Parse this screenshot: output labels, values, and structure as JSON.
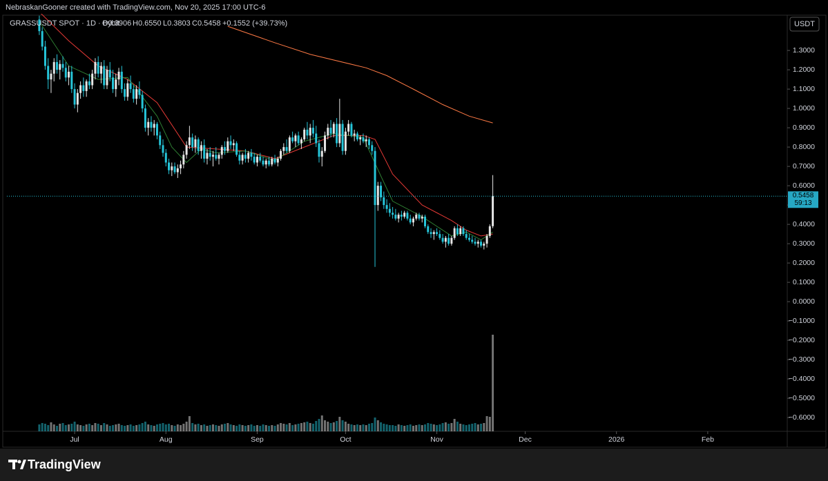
{
  "header": "NebraskanGooner created with TradingView.com, Nov 20, 2025 17:00 UTC-6",
  "logo": "TradingView",
  "currency_button": "USDT",
  "legend": {
    "symbol": "GRASSUSDT SPOT · 1D · Bybit",
    "ohlc": [
      "O0.3906",
      "H0.6550",
      "L0.3803",
      "C0.5458"
    ],
    "change": "+0.1552 (+39.73%)"
  },
  "last_price_label": "0.5458",
  "countdown": "59:13",
  "chart_data": {
    "type": "candlestick",
    "up_color": "#e6e6e6",
    "down_color": "#26c6da",
    "xlim": [
      -11,
      254
    ],
    "ylim": [
      -0.671,
      1.454
    ],
    "vlim": [
      0,
      160
    ],
    "xticks": [
      {
        "value": 12,
        "label": "Jul"
      },
      {
        "value": 43,
        "label": "Aug"
      },
      {
        "value": 74,
        "label": "Sep"
      },
      {
        "value": 104,
        "label": "Oct"
      },
      {
        "value": 135,
        "label": "Nov"
      },
      {
        "value": 165,
        "label": "Dec"
      },
      {
        "value": 196,
        "label": "2026"
      },
      {
        "value": 227,
        "label": "Feb"
      }
    ],
    "yticks": [
      {
        "value": 1.3,
        "label": "1.3000"
      },
      {
        "value": 1.2,
        "label": "1.2000"
      },
      {
        "value": 1.1,
        "label": "1.1000"
      },
      {
        "value": 1.0,
        "label": "1.0000"
      },
      {
        "value": 0.9,
        "label": "0.9000"
      },
      {
        "value": 0.8,
        "label": "0.8000"
      },
      {
        "value": 0.7,
        "label": "0.7000"
      },
      {
        "value": 0.6,
        "label": "0.6000"
      },
      {
        "value": 0.5,
        "label": "0.5000"
      },
      {
        "value": 0.4,
        "label": "0.4000"
      },
      {
        "value": 0.3,
        "label": "0.3000"
      },
      {
        "value": 0.2,
        "label": "0.2000"
      },
      {
        "value": 0.1,
        "label": "0.1000"
      },
      {
        "value": 0,
        "label": "0.0000"
      },
      {
        "value": -0.1,
        "label": "−0.1000"
      },
      {
        "value": -0.2,
        "label": "−0.2000"
      },
      {
        "value": -0.3,
        "label": "−0.3000"
      },
      {
        "value": -0.4,
        "label": "−0.4000"
      },
      {
        "value": -0.5,
        "label": "−0.5000"
      },
      {
        "value": -0.6,
        "label": "−0.6000"
      }
    ],
    "candles": [
      [
        1.46,
        1.48,
        1.38,
        1.4
      ],
      [
        1.4,
        1.42,
        1.3,
        1.32
      ],
      [
        1.32,
        1.35,
        1.2,
        1.22
      ],
      [
        1.22,
        1.26,
        1.1,
        1.15
      ],
      [
        1.15,
        1.2,
        1.08,
        1.18
      ],
      [
        1.18,
        1.26,
        1.14,
        1.24
      ],
      [
        1.24,
        1.28,
        1.18,
        1.2
      ],
      [
        1.2,
        1.25,
        1.15,
        1.23
      ],
      [
        1.23,
        1.27,
        1.19,
        1.21
      ],
      [
        1.21,
        1.24,
        1.14,
        1.16
      ],
      [
        1.16,
        1.22,
        1.12,
        1.19
      ],
      [
        1.19,
        1.22,
        1.08,
        1.1
      ],
      [
        1.1,
        1.13,
        1.0,
        1.02
      ],
      [
        1.02,
        1.1,
        0.98,
        1.08
      ],
      [
        1.08,
        1.14,
        1.05,
        1.12
      ],
      [
        1.12,
        1.16,
        1.06,
        1.09
      ],
      [
        1.09,
        1.15,
        1.06,
        1.14
      ],
      [
        1.14,
        1.18,
        1.1,
        1.12
      ],
      [
        1.12,
        1.2,
        1.1,
        1.18
      ],
      [
        1.18,
        1.26,
        1.15,
        1.24
      ],
      [
        1.24,
        1.27,
        1.16,
        1.18
      ],
      [
        1.18,
        1.24,
        1.13,
        1.22
      ],
      [
        1.22,
        1.25,
        1.1,
        1.12
      ],
      [
        1.12,
        1.22,
        1.1,
        1.2
      ],
      [
        1.2,
        1.24,
        1.14,
        1.16
      ],
      [
        1.16,
        1.2,
        1.08,
        1.1
      ],
      [
        1.1,
        1.18,
        1.06,
        1.15
      ],
      [
        1.15,
        1.21,
        1.12,
        1.19
      ],
      [
        1.19,
        1.22,
        1.08,
        1.1
      ],
      [
        1.1,
        1.13,
        1.04,
        1.06
      ],
      [
        1.06,
        1.15,
        1.04,
        1.13
      ],
      [
        1.13,
        1.17,
        1.08,
        1.1
      ],
      [
        1.1,
        1.12,
        1.03,
        1.05
      ],
      [
        1.05,
        1.12,
        1.02,
        1.1
      ],
      [
        1.1,
        1.14,
        1.05,
        1.07
      ],
      [
        1.07,
        1.09,
        0.98,
        1.0
      ],
      [
        1.0,
        1.02,
        0.88,
        0.9
      ],
      [
        0.9,
        0.95,
        0.86,
        0.93
      ],
      [
        0.93,
        0.96,
        0.88,
        0.9
      ],
      [
        0.9,
        0.94,
        0.86,
        0.92
      ],
      [
        0.92,
        0.93,
        0.84,
        0.86
      ],
      [
        0.86,
        0.88,
        0.79,
        0.81
      ],
      [
        0.81,
        0.84,
        0.75,
        0.77
      ],
      [
        0.77,
        0.79,
        0.7,
        0.72
      ],
      [
        0.72,
        0.74,
        0.66,
        0.68
      ],
      [
        0.68,
        0.72,
        0.65,
        0.7
      ],
      [
        0.7,
        0.72,
        0.66,
        0.67
      ],
      [
        0.67,
        0.71,
        0.64,
        0.69
      ],
      [
        0.69,
        0.73,
        0.66,
        0.71
      ],
      [
        0.71,
        0.78,
        0.69,
        0.76
      ],
      [
        0.76,
        0.83,
        0.74,
        0.81
      ],
      [
        0.81,
        0.91,
        0.79,
        0.85
      ],
      [
        0.85,
        0.87,
        0.78,
        0.8
      ],
      [
        0.8,
        0.86,
        0.77,
        0.84
      ],
      [
        0.84,
        0.85,
        0.76,
        0.78
      ],
      [
        0.78,
        0.83,
        0.74,
        0.81
      ],
      [
        0.81,
        0.84,
        0.72,
        0.74
      ],
      [
        0.74,
        0.79,
        0.71,
        0.77
      ],
      [
        0.77,
        0.8,
        0.73,
        0.75
      ],
      [
        0.75,
        0.78,
        0.7,
        0.76
      ],
      [
        0.76,
        0.8,
        0.73,
        0.74
      ],
      [
        0.74,
        0.77,
        0.71,
        0.76
      ],
      [
        0.76,
        0.81,
        0.74,
        0.8
      ],
      [
        0.8,
        0.83,
        0.76,
        0.78
      ],
      [
        0.78,
        0.85,
        0.77,
        0.83
      ],
      [
        0.83,
        0.86,
        0.79,
        0.81
      ],
      [
        0.81,
        0.84,
        0.78,
        0.82
      ],
      [
        0.82,
        0.83,
        0.75,
        0.76
      ],
      [
        0.76,
        0.78,
        0.71,
        0.73
      ],
      [
        0.73,
        0.77,
        0.71,
        0.76
      ],
      [
        0.76,
        0.79,
        0.72,
        0.74
      ],
      [
        0.74,
        0.78,
        0.72,
        0.77
      ],
      [
        0.77,
        0.79,
        0.73,
        0.75
      ],
      [
        0.75,
        0.77,
        0.71,
        0.72
      ],
      [
        0.72,
        0.76,
        0.7,
        0.75
      ],
      [
        0.75,
        0.77,
        0.72,
        0.73
      ],
      [
        0.73,
        0.75,
        0.7,
        0.71
      ],
      [
        0.71,
        0.74,
        0.69,
        0.73
      ],
      [
        0.73,
        0.75,
        0.7,
        0.71
      ],
      [
        0.71,
        0.75,
        0.7,
        0.74
      ],
      [
        0.74,
        0.76,
        0.71,
        0.72
      ],
      [
        0.72,
        0.75,
        0.7,
        0.74
      ],
      [
        0.74,
        0.79,
        0.73,
        0.78
      ],
      [
        0.78,
        0.82,
        0.76,
        0.8
      ],
      [
        0.8,
        0.84,
        0.77,
        0.78
      ],
      [
        0.78,
        0.86,
        0.77,
        0.85
      ],
      [
        0.85,
        0.88,
        0.82,
        0.83
      ],
      [
        0.83,
        0.87,
        0.8,
        0.86
      ],
      [
        0.86,
        0.88,
        0.81,
        0.82
      ],
      [
        0.82,
        0.85,
        0.79,
        0.84
      ],
      [
        0.84,
        0.9,
        0.83,
        0.89
      ],
      [
        0.89,
        0.93,
        0.84,
        0.86
      ],
      [
        0.86,
        0.92,
        0.82,
        0.9
      ],
      [
        0.9,
        0.94,
        0.85,
        0.87
      ],
      [
        0.87,
        0.91,
        0.8,
        0.82
      ],
      [
        0.82,
        0.84,
        0.72,
        0.75
      ],
      [
        0.75,
        0.8,
        0.7,
        0.78
      ],
      [
        0.78,
        0.88,
        0.77,
        0.86
      ],
      [
        0.86,
        0.92,
        0.84,
        0.9
      ],
      [
        0.9,
        0.94,
        0.85,
        0.87
      ],
      [
        0.87,
        0.93,
        0.85,
        0.92
      ],
      [
        0.92,
        0.95,
        0.8,
        0.82
      ],
      [
        0.82,
        1.05,
        0.8,
        0.92
      ],
      [
        0.92,
        0.94,
        0.76,
        0.78
      ],
      [
        0.78,
        0.9,
        0.76,
        0.88
      ],
      [
        0.88,
        0.94,
        0.86,
        0.92
      ],
      [
        0.92,
        0.93,
        0.85,
        0.86
      ],
      [
        0.86,
        0.89,
        0.83,
        0.87
      ],
      [
        0.87,
        0.88,
        0.83,
        0.84
      ],
      [
        0.84,
        0.86,
        0.81,
        0.85
      ],
      [
        0.85,
        0.87,
        0.82,
        0.83
      ],
      [
        0.83,
        0.86,
        0.8,
        0.84
      ],
      [
        0.84,
        0.85,
        0.79,
        0.81
      ],
      [
        0.81,
        0.83,
        0.76,
        0.78
      ],
      [
        0.78,
        0.8,
        0.18,
        0.5
      ],
      [
        0.5,
        0.62,
        0.47,
        0.6
      ],
      [
        0.6,
        0.62,
        0.52,
        0.54
      ],
      [
        0.54,
        0.57,
        0.48,
        0.5
      ],
      [
        0.5,
        0.53,
        0.46,
        0.48
      ],
      [
        0.48,
        0.51,
        0.44,
        0.46
      ],
      [
        0.46,
        0.49,
        0.43,
        0.45
      ],
      [
        0.45,
        0.48,
        0.42,
        0.43
      ],
      [
        0.43,
        0.46,
        0.41,
        0.45
      ],
      [
        0.45,
        0.47,
        0.42,
        0.44
      ],
      [
        0.44,
        0.47,
        0.43,
        0.46
      ],
      [
        0.46,
        0.47,
        0.42,
        0.43
      ],
      [
        0.43,
        0.45,
        0.4,
        0.41
      ],
      [
        0.41,
        0.44,
        0.39,
        0.43
      ],
      [
        0.43,
        0.46,
        0.42,
        0.45
      ],
      [
        0.45,
        0.46,
        0.42,
        0.43
      ],
      [
        0.43,
        0.45,
        0.41,
        0.44
      ],
      [
        0.44,
        0.45,
        0.38,
        0.39
      ],
      [
        0.39,
        0.4,
        0.35,
        0.36
      ],
      [
        0.36,
        0.38,
        0.33,
        0.35
      ],
      [
        0.35,
        0.37,
        0.32,
        0.36
      ],
      [
        0.36,
        0.38,
        0.34,
        0.35
      ],
      [
        0.35,
        0.37,
        0.32,
        0.33
      ],
      [
        0.33,
        0.35,
        0.3,
        0.31
      ],
      [
        0.31,
        0.34,
        0.28,
        0.33
      ],
      [
        0.33,
        0.35,
        0.29,
        0.3
      ],
      [
        0.3,
        0.34,
        0.29,
        0.33
      ],
      [
        0.33,
        0.39,
        0.32,
        0.38
      ],
      [
        0.38,
        0.4,
        0.34,
        0.35
      ],
      [
        0.35,
        0.39,
        0.34,
        0.38
      ],
      [
        0.38,
        0.39,
        0.34,
        0.35
      ],
      [
        0.35,
        0.37,
        0.32,
        0.33
      ],
      [
        0.33,
        0.35,
        0.31,
        0.32
      ],
      [
        0.32,
        0.34,
        0.3,
        0.31
      ],
      [
        0.31,
        0.33,
        0.29,
        0.3
      ],
      [
        0.3,
        0.32,
        0.28,
        0.31
      ],
      [
        0.31,
        0.32,
        0.28,
        0.29
      ],
      [
        0.29,
        0.31,
        0.27,
        0.3
      ],
      [
        0.3,
        0.35,
        0.28,
        0.34
      ],
      [
        0.34,
        0.4,
        0.33,
        0.39
      ],
      [
        0.3906,
        0.655,
        0.3803,
        0.5458
      ]
    ],
    "volume": [
      10,
      12,
      11,
      9,
      13,
      10,
      8,
      11,
      12,
      9,
      10,
      11,
      14,
      10,
      9,
      8,
      10,
      11,
      9,
      12,
      11,
      9,
      12,
      10,
      8,
      9,
      10,
      11,
      9,
      8,
      9,
      10,
      8,
      9,
      10,
      12,
      14,
      10,
      9,
      8,
      10,
      11,
      12,
      10,
      11,
      9,
      8,
      10,
      9,
      11,
      14,
      22,
      12,
      10,
      11,
      9,
      10,
      8,
      9,
      10,
      9,
      8,
      10,
      11,
      12,
      10,
      9,
      8,
      10,
      9,
      8,
      9,
      10,
      8,
      9,
      8,
      10,
      9,
      8,
      9,
      8,
      10,
      12,
      11,
      10,
      12,
      9,
      10,
      11,
      12,
      13,
      14,
      12,
      11,
      15,
      18,
      23,
      16,
      14,
      12,
      13,
      15,
      21,
      16,
      14,
      11,
      10,
      9,
      10,
      9,
      10,
      9,
      11,
      12,
      20,
      16,
      13,
      11,
      10,
      9,
      9,
      8,
      10,
      9,
      8,
      9,
      10,
      8,
      9,
      10,
      9,
      10,
      12,
      11,
      10,
      9,
      10,
      12,
      13,
      11,
      12,
      18,
      14,
      11,
      10,
      9,
      10,
      11,
      12,
      10,
      11,
      12,
      22,
      21,
      140
    ],
    "series": [
      {
        "color": "#ff7a45",
        "x": [
          64,
          80,
          92,
          111,
          118,
          127,
          137,
          146,
          154
        ],
        "values": [
          1.425,
          1.34,
          1.28,
          1.21,
          1.17,
          1.1,
          1.02,
          0.96,
          0.925
        ]
      },
      {
        "color": "#e53935",
        "x": [
          0,
          10,
          20,
          30,
          40,
          50,
          60,
          70,
          80,
          90,
          100,
          110,
          114,
          120,
          130,
          140,
          145,
          150,
          154
        ],
        "values": [
          1.5,
          1.35,
          1.22,
          1.15,
          1.03,
          0.8,
          0.79,
          0.78,
          0.74,
          0.8,
          0.86,
          0.86,
          0.84,
          0.66,
          0.5,
          0.42,
          0.37,
          0.34,
          0.35
        ]
      },
      {
        "color": "#2e7d32",
        "x": [
          0,
          10,
          20,
          30,
          40,
          45,
          50,
          55,
          60,
          70,
          80,
          90,
          100,
          110,
          116,
          120,
          130,
          140,
          145,
          150,
          154
        ],
        "values": [
          1.45,
          1.22,
          1.15,
          1.16,
          0.96,
          0.8,
          0.72,
          0.79,
          0.77,
          0.78,
          0.73,
          0.83,
          0.87,
          0.85,
          0.65,
          0.52,
          0.44,
          0.34,
          0.36,
          0.32,
          0.36
        ]
      }
    ]
  }
}
